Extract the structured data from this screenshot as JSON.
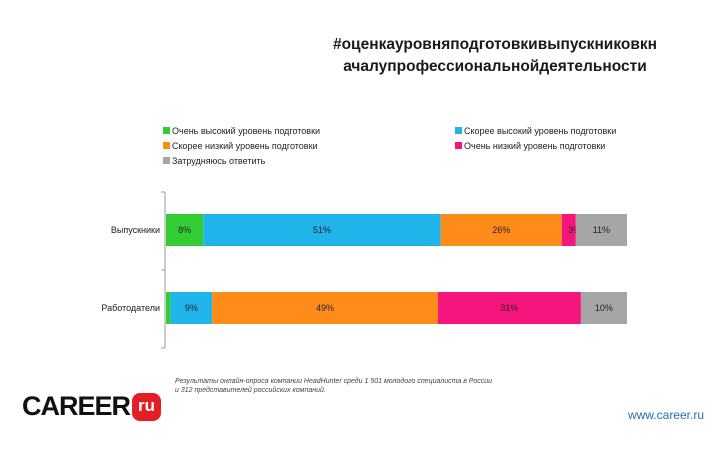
{
  "title_lines": [
    "#оценкауровняподготовкивыпускниковкн",
    "ачалупрофессиональнойдеятельности"
  ],
  "footnote_lines": [
    "Результаты онлайн-опроса компании HeadHunter среди 1 501 молодого специалиста в России",
    "и 312 представителей российских компаний."
  ],
  "logo": {
    "text": "CAREER",
    "badge": "ru"
  },
  "website": "www.career.ru",
  "chart_data": {
    "type": "bar",
    "orientation": "horizontal",
    "stacked": true,
    "percent_stacked": true,
    "legend_position": "top",
    "categories": [
      "Выпускники",
      "Работодатели"
    ],
    "series": [
      {
        "name": "Очень высокий уровень подготовки",
        "color": "#33cc33",
        "values": [
          8,
          1
        ],
        "labels": [
          "8%",
          "1%"
        ]
      },
      {
        "name": "Скорее высокий уровень подготовки",
        "color": "#1fb5ea",
        "values": [
          51,
          9
        ],
        "labels": [
          "51%",
          "9%"
        ]
      },
      {
        "name": "Скорее низкий уровень подготовки",
        "color": "#ff8c1a",
        "values": [
          26,
          49
        ],
        "labels": [
          "26%",
          "49%"
        ]
      },
      {
        "name": "Очень низкий уровень подготовки",
        "color": "#f5157c",
        "values": [
          3,
          31
        ],
        "labels": [
          "3%",
          "31%"
        ]
      },
      {
        "name": "Затрудняюсь ответить",
        "color": "#a6a6a6",
        "values": [
          11,
          10
        ],
        "labels": [
          "11%",
          "10%"
        ]
      }
    ]
  }
}
